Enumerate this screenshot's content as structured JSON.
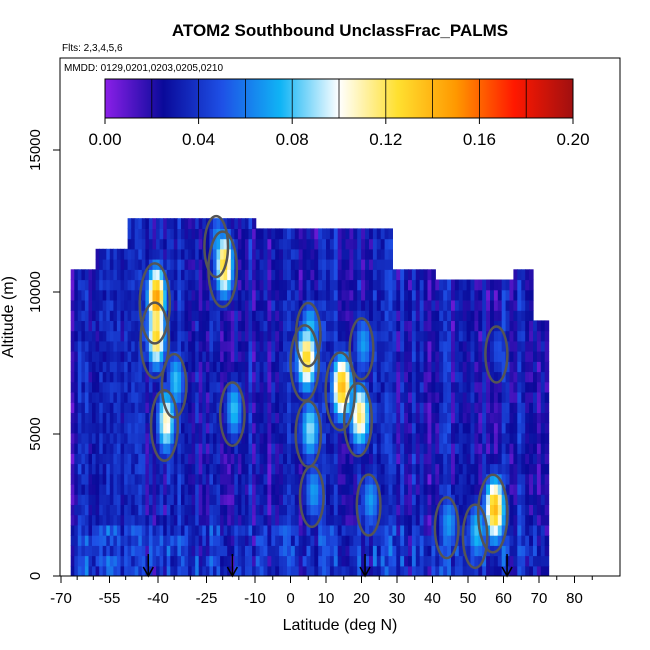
{
  "chart_data": {
    "type": "heatmap",
    "title": "ATOM2 Southbound UnclassFrac_PALMS",
    "flights_note": "Flts: 2,3,4,5,6",
    "dates_note": "MMDD: 0129,0201,0203,0205,0210",
    "xlabel": "Latitude (deg N)",
    "ylabel": "Altitude (m)",
    "xlim": [
      -70,
      85
    ],
    "ylim": [
      0,
      17500
    ],
    "x_ticks": [
      -70,
      -55,
      -40,
      -25,
      -10,
      0,
      10,
      20,
      30,
      40,
      50,
      60,
      70,
      80
    ],
    "x_minor_ticks": [
      -65,
      -60,
      -50,
      -45,
      -35,
      -30,
      -20,
      -15,
      -5,
      5,
      15,
      25,
      35,
      45,
      55,
      65,
      75,
      85
    ],
    "y_ticks": [
      0,
      5000,
      10000,
      15000
    ],
    "colorbar": {
      "min": 0,
      "max": 0.2,
      "ticks": [
        "0.00",
        "0.04",
        "0.08",
        "0.12",
        "0.16",
        "0.20"
      ],
      "stops": [
        "#8b1fe8",
        "#0a0a9a",
        "#1e50e6",
        "#10b4f5",
        "#ffffff",
        "#ffe030",
        "#ff9800",
        "#ff1800",
        "#a01010"
      ]
    },
    "contour_color": "#555555",
    "arrows_lat": [
      -43,
      -17,
      21,
      61
    ],
    "hotspots": [
      {
        "lat": -41,
        "alt": 9600,
        "value": 0.15
      },
      {
        "lat": -41,
        "alt": 8300,
        "value": 0.13
      },
      {
        "lat": -35,
        "alt": 6700,
        "value": 0.08
      },
      {
        "lat": -38,
        "alt": 5300,
        "value": 0.11
      },
      {
        "lat": -20,
        "alt": 10800,
        "value": 0.13
      },
      {
        "lat": -22,
        "alt": 11600,
        "value": 0.07
      },
      {
        "lat": -17,
        "alt": 5700,
        "value": 0.08
      },
      {
        "lat": 5,
        "alt": 8500,
        "value": 0.08
      },
      {
        "lat": 4,
        "alt": 7500,
        "value": 0.13
      },
      {
        "lat": 5,
        "alt": 5000,
        "value": 0.09
      },
      {
        "lat": 6,
        "alt": 2800,
        "value": 0.07
      },
      {
        "lat": 14,
        "alt": 6500,
        "value": 0.14
      },
      {
        "lat": 19,
        "alt": 5500,
        "value": 0.12
      },
      {
        "lat": 20,
        "alt": 8000,
        "value": 0.07
      },
      {
        "lat": 22,
        "alt": 2500,
        "value": 0.07
      },
      {
        "lat": 44,
        "alt": 1700,
        "value": 0.07
      },
      {
        "lat": 52,
        "alt": 1400,
        "value": 0.08
      },
      {
        "lat": 57,
        "alt": 2200,
        "value": 0.14
      },
      {
        "lat": 58,
        "alt": 7800,
        "value": 0.05
      }
    ],
    "grid": false,
    "legend": "colorbar top"
  }
}
